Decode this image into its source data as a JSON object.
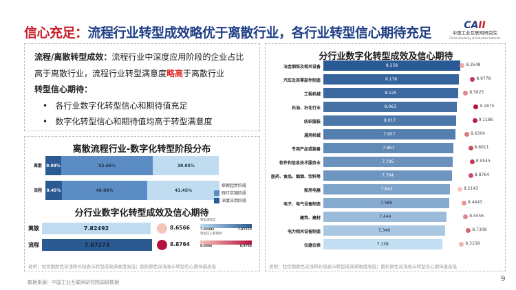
{
  "header": {
    "title_prefix": "信心充足：",
    "title_rest": "流程行业转型成效略优于离散行业，各行业转型信心期待充足",
    "logo": {
      "mark": "CAII",
      "cn": "中国工业互联网研究院",
      "en": "China Academy of Industrial Internet"
    }
  },
  "summary": {
    "h1": "流程/离散转型成效：",
    "p1a": "流程行业中深度应用阶段的企业占比高于离散行业，流程行业转型满意度",
    "p1hl": "略高",
    "p1b": "于离散行业",
    "h2": "转型信心期待：",
    "bullets": [
      "各行业数字化转型信心和期待值充足",
      "数字化转型信心和期待值均高于转型满意度"
    ]
  },
  "colors": {
    "accent": "#1f3f86",
    "highlight": "#c8202a",
    "dark_bar": "#2b5a93",
    "light_bar": "#bfdcf1",
    "dot_light": "#f7c3bb",
    "dot_dark": "#b3123a"
  },
  "chart_data": [
    {
      "type": "bar",
      "stacked": true,
      "title": "离散流程行业-数字化转型阶段分布",
      "categories": [
        "离散",
        "流程"
      ],
      "series": [
        {
          "name": "深度应用阶段",
          "values": [
            9.09,
            9.45
          ],
          "color": "#2b5a93"
        },
        {
          "name": "践行实施阶段",
          "values": [
            52.66,
            49.09
          ],
          "color": "#5b8dc4"
        },
        {
          "name": "探索起步阶段",
          "values": [
            38.05,
            41.45
          ],
          "color": "#bfdcf1"
        }
      ],
      "labels": [
        [
          "9.09%",
          "52.66%",
          "38.05%"
        ],
        [
          "9.45%",
          "49.09%",
          "41.45%"
        ]
      ],
      "legend": [
        "探索起步阶段",
        "践行实施阶段",
        "深度应用阶段"
      ],
      "legend_position": "right"
    },
    {
      "type": "bar",
      "title": "分行业数字化转型成效及信心期待",
      "categories": [
        "离散",
        "流程"
      ],
      "satisfaction": [
        7.82492,
        7.87273
      ],
      "confidence": [
        8.6566,
        8.8764
      ],
      "sat_labels": [
        "7.82492",
        "7.87273"
      ],
      "conf_labels": [
        "8.6566",
        "8.8764"
      ],
      "legend": {
        "sat_title": "转型满意度",
        "sat_min": "7.82492",
        "sat_max": "7.87273",
        "conf_title": "转型信心和期待",
        "conf_min": "8.6566",
        "conf_max": "8.8764"
      }
    },
    {
      "type": "bar",
      "orientation": "horizontal",
      "title": "分行业数字化转型成效及信心期待",
      "categories": [
        "冶金钢铁及相关设备",
        "汽车及其零部件制造",
        "工程机械",
        "石油、石化行业",
        "纺织服装",
        "通用机械",
        "专用产品或装备",
        "软件和信息技术服务业",
        "医药、食品、烟酒、饮料等",
        "家用电器",
        "电子、电气设备制造",
        "建筑、建材",
        "电力相关设备制造",
        "仪器仪表"
      ],
      "satisfaction": [
        8.258,
        8.178,
        8.125,
        8.063,
        8.017,
        7.957,
        7.861,
        7.795,
        7.764,
        7.643,
        7.589,
        7.444,
        7.346,
        7.158
      ],
      "sat_labels": [
        "8.258",
        "8.178",
        "8.125",
        "8.063",
        "8.017",
        "7.957",
        "7.861",
        "7.795",
        "7.764",
        "7.643",
        "7.589",
        "7.444",
        "7.346",
        "7.158"
      ],
      "confidence": [
        8.3548,
        8.9778,
        8.5625,
        9.1875,
        9.1186,
        8.6304,
        8.8611,
        8.9545,
        8.8764,
        8.2143,
        8.4643,
        8.5556,
        8.7308,
        8.3158
      ],
      "conf_labels": [
        "8.3548",
        "8.9778",
        "8.5625",
        "9.1875",
        "9.1186",
        "8.6304",
        "8.8611",
        "8.9545",
        "8.8764",
        "8.2143",
        "8.4643",
        "8.5556",
        "8.7308",
        "8.3158"
      ]
    }
  ],
  "notes": {
    "left": "说明：柱状图颜色深浅和长短表示转型成效满意度高低；圆形颜色深浅表示转型信心期待值高低",
    "right": "说明：柱状图颜色深浅和长短表示转型成效满意度高低；圆形颜色深浅表示转型信心期待值高低"
  },
  "footer": {
    "source": "数据来源：中国工业互联网研究院调研数据",
    "page": "9"
  }
}
